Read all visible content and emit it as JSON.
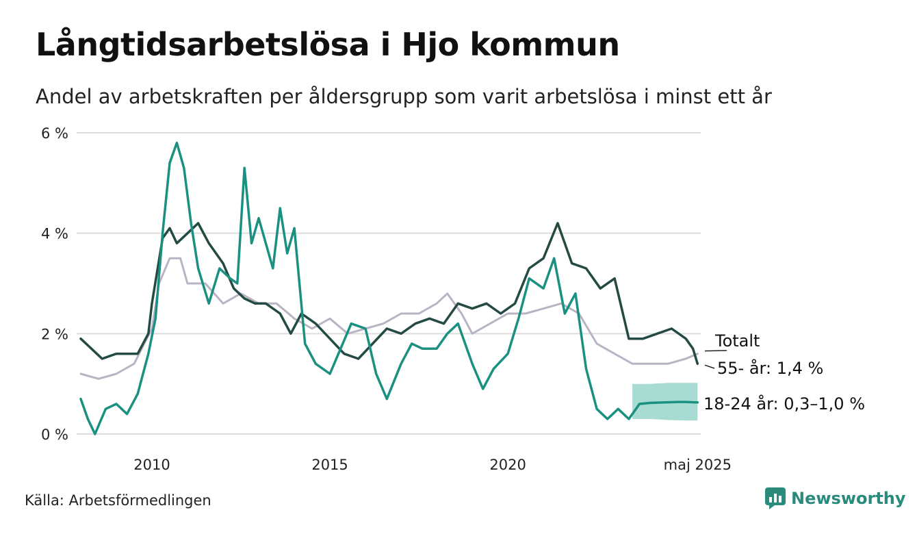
{
  "title": "Långtidsarbetslösa i Hjo kommun",
  "subtitle": "Andel av arbetskraften per åldersgrupp som varit arbetslösa i minst ett år",
  "source": "Källa: Arbetsförmedlingen",
  "brand": {
    "name": "Newsworthy",
    "icon": "newsworthy-logo-icon"
  },
  "colors": {
    "total": "#b9b3c3",
    "age55": "#234a43",
    "age1824": "#1a9080",
    "band": "#9ed7cc",
    "grid": "#dddddd"
  },
  "chart_data": {
    "type": "line",
    "ylim": [
      0,
      6
    ],
    "xlim": [
      2008.0,
      2025.42
    ],
    "yticks": [
      {
        "value": 0,
        "label": "0 %"
      },
      {
        "value": 2,
        "label": "2 %"
      },
      {
        "value": 4,
        "label": "4 %"
      },
      {
        "value": 6,
        "label": "6 %"
      }
    ],
    "xticks": [
      {
        "value": 2010,
        "label": "2010"
      },
      {
        "value": 2015,
        "label": "2015"
      },
      {
        "value": 2020,
        "label": "2020"
      },
      {
        "value": 2025.33,
        "label": "maj 2025"
      }
    ],
    "series": [
      {
        "key": "total",
        "name": "Totalt",
        "label": "Totalt",
        "x": [
          2008.0,
          2008.5,
          2009.0,
          2009.5,
          2010.0,
          2010.2,
          2010.5,
          2010.8,
          2011.0,
          2011.5,
          2012.0,
          2012.5,
          2013.0,
          2013.5,
          2014.0,
          2014.5,
          2015.0,
          2015.5,
          2016.0,
          2016.5,
          2017.0,
          2017.5,
          2018.0,
          2018.3,
          2018.7,
          2019.0,
          2019.5,
          2020.0,
          2020.5,
          2021.0,
          2021.5,
          2022.0,
          2022.5,
          2023.0,
          2023.5,
          2024.0,
          2024.5,
          2025.0,
          2025.33
        ],
        "values": [
          1.2,
          1.1,
          1.2,
          1.4,
          2.1,
          3.0,
          3.5,
          3.5,
          3.0,
          3.0,
          2.6,
          2.8,
          2.6,
          2.6,
          2.3,
          2.1,
          2.3,
          2.0,
          2.1,
          2.2,
          2.4,
          2.4,
          2.6,
          2.8,
          2.4,
          2.0,
          2.2,
          2.4,
          2.4,
          2.5,
          2.6,
          2.4,
          1.8,
          1.6,
          1.4,
          1.4,
          1.4,
          1.5,
          1.6
        ]
      },
      {
        "key": "age55",
        "name": "55- år",
        "label": "55- år: 1,4 %",
        "x": [
          2008.0,
          2008.3,
          2008.6,
          2009.0,
          2009.3,
          2009.6,
          2009.9,
          2010.0,
          2010.3,
          2010.5,
          2010.7,
          2011.0,
          2011.3,
          2011.6,
          2012.0,
          2012.3,
          2012.6,
          2012.9,
          2013.2,
          2013.6,
          2013.9,
          2014.2,
          2014.6,
          2015.0,
          2015.4,
          2015.8,
          2016.2,
          2016.6,
          2017.0,
          2017.4,
          2017.8,
          2018.2,
          2018.6,
          2019.0,
          2019.4,
          2019.8,
          2020.2,
          2020.6,
          2021.0,
          2021.4,
          2021.8,
          2022.2,
          2022.6,
          2023.0,
          2023.4,
          2023.8,
          2024.2,
          2024.6,
          2025.0,
          2025.2,
          2025.33
        ],
        "values": [
          1.9,
          1.7,
          1.5,
          1.6,
          1.6,
          1.6,
          2.0,
          2.6,
          3.9,
          4.1,
          3.8,
          4.0,
          4.2,
          3.8,
          3.4,
          2.9,
          2.7,
          2.6,
          2.6,
          2.4,
          2.0,
          2.4,
          2.2,
          1.9,
          1.6,
          1.5,
          1.8,
          2.1,
          2.0,
          2.2,
          2.3,
          2.2,
          2.6,
          2.5,
          2.6,
          2.4,
          2.6,
          3.3,
          3.5,
          4.2,
          3.4,
          3.3,
          2.9,
          3.1,
          1.9,
          1.9,
          2.0,
          2.1,
          1.9,
          1.7,
          1.4
        ]
      },
      {
        "key": "age1824",
        "name": "18-24 år",
        "label": "18-24 år: 0,3–1,0 %",
        "x": [
          2008.0,
          2008.2,
          2008.4,
          2008.7,
          2009.0,
          2009.3,
          2009.6,
          2009.9,
          2010.1,
          2010.3,
          2010.5,
          2010.7,
          2010.9,
          2011.1,
          2011.3,
          2011.6,
          2011.9,
          2012.2,
          2012.4,
          2012.6,
          2012.8,
          2013.0,
          2013.2,
          2013.4,
          2013.6,
          2013.8,
          2014.0,
          2014.3,
          2014.6,
          2015.0,
          2015.3,
          2015.6,
          2016.0,
          2016.3,
          2016.6,
          2017.0,
          2017.3,
          2017.6,
          2018.0,
          2018.3,
          2018.6,
          2019.0,
          2019.3,
          2019.6,
          2020.0,
          2020.3,
          2020.6,
          2021.0,
          2021.3,
          2021.6,
          2021.9,
          2022.2,
          2022.5,
          2022.8,
          2023.1,
          2023.4,
          2023.7,
          2024.0,
          2024.4,
          2024.8,
          2025.0,
          2025.33
        ],
        "values": [
          0.7,
          0.3,
          0.0,
          0.5,
          0.6,
          0.4,
          0.8,
          1.6,
          2.3,
          4.0,
          5.4,
          5.8,
          5.3,
          4.2,
          3.3,
          2.6,
          3.3,
          3.1,
          3.0,
          5.3,
          3.8,
          4.3,
          3.8,
          3.3,
          4.5,
          3.6,
          4.1,
          1.8,
          1.4,
          1.2,
          1.7,
          2.2,
          2.1,
          1.2,
          0.7,
          1.4,
          1.8,
          1.7,
          1.7,
          2.0,
          2.2,
          1.4,
          0.9,
          1.3,
          1.6,
          2.3,
          3.1,
          2.9,
          3.5,
          2.4,
          2.8,
          1.3,
          0.5,
          0.3,
          0.5,
          0.3,
          0.6,
          0.62,
          0.63,
          0.64,
          0.64,
          0.63
        ]
      }
    ],
    "band": {
      "series": "age1824",
      "x": [
        2023.5,
        2024.0,
        2024.5,
        2025.0,
        2025.33
      ],
      "lower": [
        0.3,
        0.3,
        0.28,
        0.27,
        0.27
      ],
      "upper": [
        1.0,
        1.0,
        1.02,
        1.02,
        1.02
      ]
    }
  }
}
